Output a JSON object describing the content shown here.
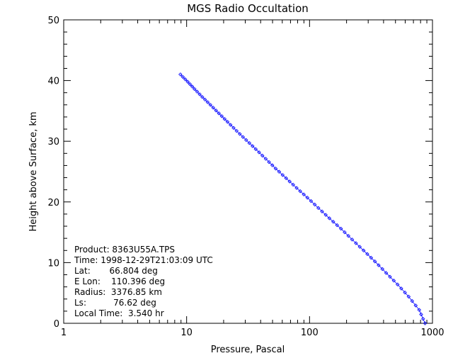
{
  "chart_data": {
    "type": "scatter",
    "title": "MGS Radio Occultation",
    "xlabel": "Pressure, Pascal",
    "ylabel": "Height above Surface, km",
    "xscale": "log",
    "xlim": [
      1,
      1000
    ],
    "ylim": [
      0,
      50
    ],
    "x_ticks": [
      {
        "value": 1,
        "label": "1"
      },
      {
        "value": 10,
        "label": "10"
      },
      {
        "value": 100,
        "label": "100"
      },
      {
        "value": 1000,
        "label": "1000"
      }
    ],
    "y_ticks": [
      {
        "value": 0,
        "label": "0"
      },
      {
        "value": 10,
        "label": "10"
      },
      {
        "value": 20,
        "label": "20"
      },
      {
        "value": 30,
        "label": "30"
      },
      {
        "value": 40,
        "label": "40"
      },
      {
        "value": 50,
        "label": "50"
      }
    ],
    "marker": "diamond",
    "series_color": "#0000ff",
    "grid": false,
    "series": [
      {
        "x": [
          8.9,
          10.2,
          11.6,
          13.4,
          15.6,
          18.3,
          21.5,
          25.5,
          30.5,
          36.5,
          44.0,
          53.0,
          64.5,
          78.5,
          96.0,
          118,
          145,
          180,
          222,
          275,
          340,
          420,
          520,
          640,
          780,
          870
        ],
        "y": [
          41.0,
          39.8,
          38.6,
          37.3,
          36.0,
          34.6,
          33.2,
          31.7,
          30.2,
          28.7,
          27.1,
          25.5,
          23.9,
          22.3,
          20.7,
          19.0,
          17.3,
          15.6,
          13.8,
          12.0,
          10.2,
          8.3,
          6.4,
          4.4,
          2.2,
          0.0
        ]
      }
    ]
  },
  "info": {
    "product": "Product: 8363U55A.TPS",
    "time": "Time: 1998-12-29T21:03:09 UTC",
    "lat": "Lat:       66.804 deg",
    "elon": "E Lon:    110.396 deg",
    "radius": "Radius:  3376.85 km",
    "ls": "Ls:          76.62 deg",
    "local_time": "Local Time:  3.540 hr"
  }
}
